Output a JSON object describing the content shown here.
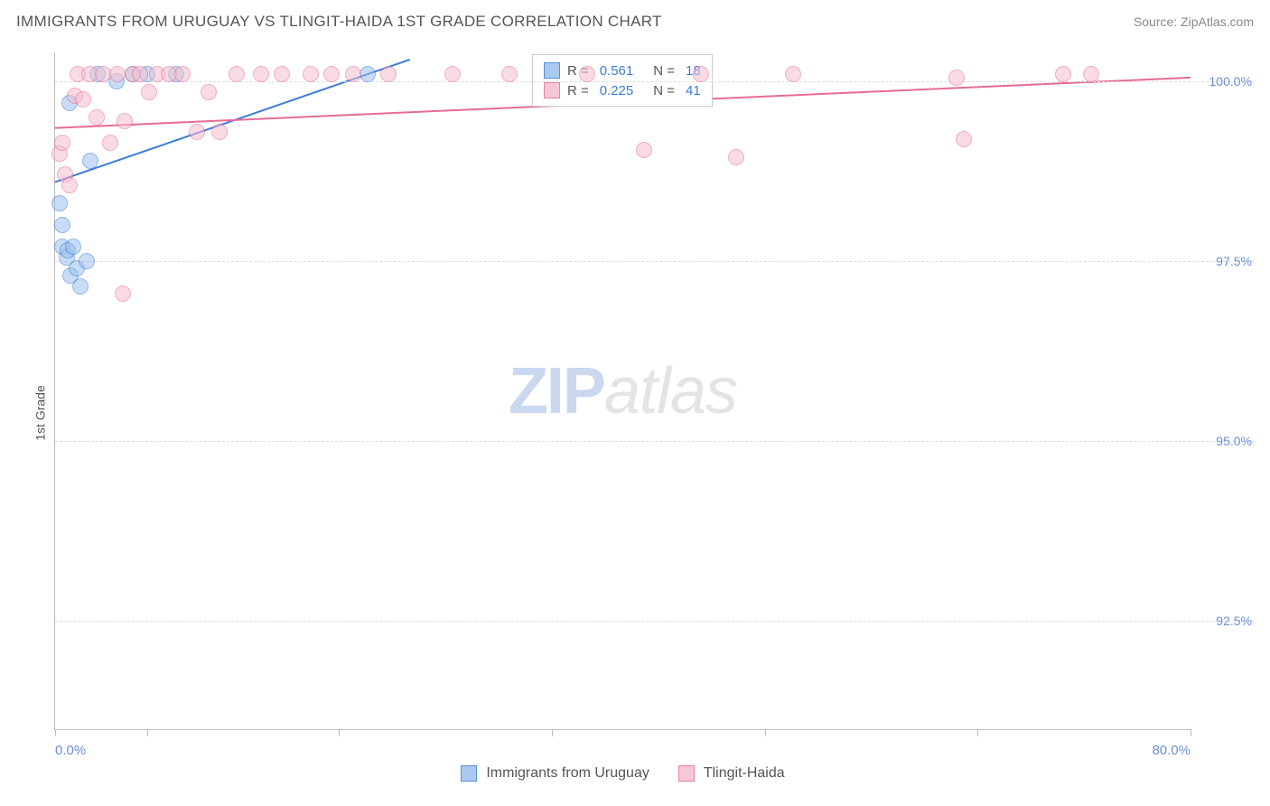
{
  "header": {
    "title": "IMMIGRANTS FROM URUGUAY VS TLINGIT-HAIDA 1ST GRADE CORRELATION CHART",
    "source": "Source: ZipAtlas.com"
  },
  "ylabel": "1st Grade",
  "watermark": {
    "part1": "ZIP",
    "part2": "atlas"
  },
  "chart": {
    "type": "scatter",
    "xlim": [
      0,
      80
    ],
    "ylim": [
      91,
      100.4
    ],
    "yticks": [
      92.5,
      95.0,
      97.5,
      100.0
    ],
    "ytick_labels": [
      "92.5%",
      "95.0%",
      "97.5%",
      "100.0%"
    ],
    "xticks": [
      0,
      6.5,
      20,
      35,
      50,
      65,
      80
    ],
    "xtick_labels_shown": {
      "0": "0.0%",
      "80": "80.0%"
    },
    "grid_color": "#dddddd",
    "axis_color": "#bbbbbb",
    "background_color": "#ffffff",
    "label_color": "#6a8fd8",
    "point_radius": 9,
    "point_opacity": 0.55,
    "series": [
      {
        "id": "uruguay",
        "label": "Immigrants from Uruguay",
        "color_fill": "#9cc0ee",
        "color_stroke": "#3b7dd8",
        "R": "0.561",
        "N": "18",
        "trend": {
          "x1": 0,
          "y1": 98.6,
          "x2": 25,
          "y2": 100.3,
          "width": 2
        },
        "points": [
          [
            0.3,
            98.3
          ],
          [
            0.5,
            97.7
          ],
          [
            0.5,
            98.0
          ],
          [
            0.8,
            97.55
          ],
          [
            0.9,
            97.65
          ],
          [
            1.1,
            97.3
          ],
          [
            1.3,
            97.7
          ],
          [
            1.5,
            97.4
          ],
          [
            1.8,
            97.15
          ],
          [
            2.2,
            97.5
          ],
          [
            1.0,
            99.7
          ],
          [
            2.5,
            98.9
          ],
          [
            3.0,
            100.1
          ],
          [
            4.3,
            100.0
          ],
          [
            5.5,
            100.1
          ],
          [
            6.5,
            100.1
          ],
          [
            8.5,
            100.1
          ],
          [
            22.0,
            100.1
          ]
        ]
      },
      {
        "id": "tlingit",
        "label": "Tlingit-Haida",
        "color_fill": "#f5bfce",
        "color_stroke": "#e66b94",
        "R": "0.225",
        "N": "41",
        "trend": {
          "x1": 0,
          "y1": 99.35,
          "x2": 80,
          "y2": 100.05,
          "width": 2
        },
        "points": [
          [
            0.3,
            99.0
          ],
          [
            0.5,
            99.15
          ],
          [
            0.7,
            98.7
          ],
          [
            1.0,
            98.55
          ],
          [
            1.4,
            99.8
          ],
          [
            1.6,
            100.1
          ],
          [
            2.0,
            99.75
          ],
          [
            2.4,
            100.1
          ],
          [
            2.9,
            99.5
          ],
          [
            3.4,
            100.1
          ],
          [
            3.9,
            99.15
          ],
          [
            4.4,
            100.1
          ],
          [
            4.9,
            99.45
          ],
          [
            5.5,
            100.1
          ],
          [
            6.0,
            100.1
          ],
          [
            6.6,
            99.85
          ],
          [
            7.2,
            100.1
          ],
          [
            8.0,
            100.1
          ],
          [
            9.0,
            100.1
          ],
          [
            10.0,
            99.3
          ],
          [
            10.8,
            99.85
          ],
          [
            11.6,
            99.3
          ],
          [
            12.8,
            100.1
          ],
          [
            14.5,
            100.1
          ],
          [
            16.0,
            100.1
          ],
          [
            18.0,
            100.1
          ],
          [
            19.5,
            100.1
          ],
          [
            21.0,
            100.1
          ],
          [
            23.5,
            100.1
          ],
          [
            28.0,
            100.1
          ],
          [
            32.0,
            100.1
          ],
          [
            37.5,
            100.1
          ],
          [
            41.5,
            99.05
          ],
          [
            45.5,
            100.1
          ],
          [
            48.0,
            98.95
          ],
          [
            52.0,
            100.1
          ],
          [
            63.5,
            100.05
          ],
          [
            64.0,
            99.2
          ],
          [
            71.0,
            100.1
          ],
          [
            73.0,
            100.1
          ],
          [
            4.8,
            97.05
          ]
        ]
      }
    ]
  },
  "stats_legend": {
    "R_label": "R =",
    "N_label": "N ="
  }
}
